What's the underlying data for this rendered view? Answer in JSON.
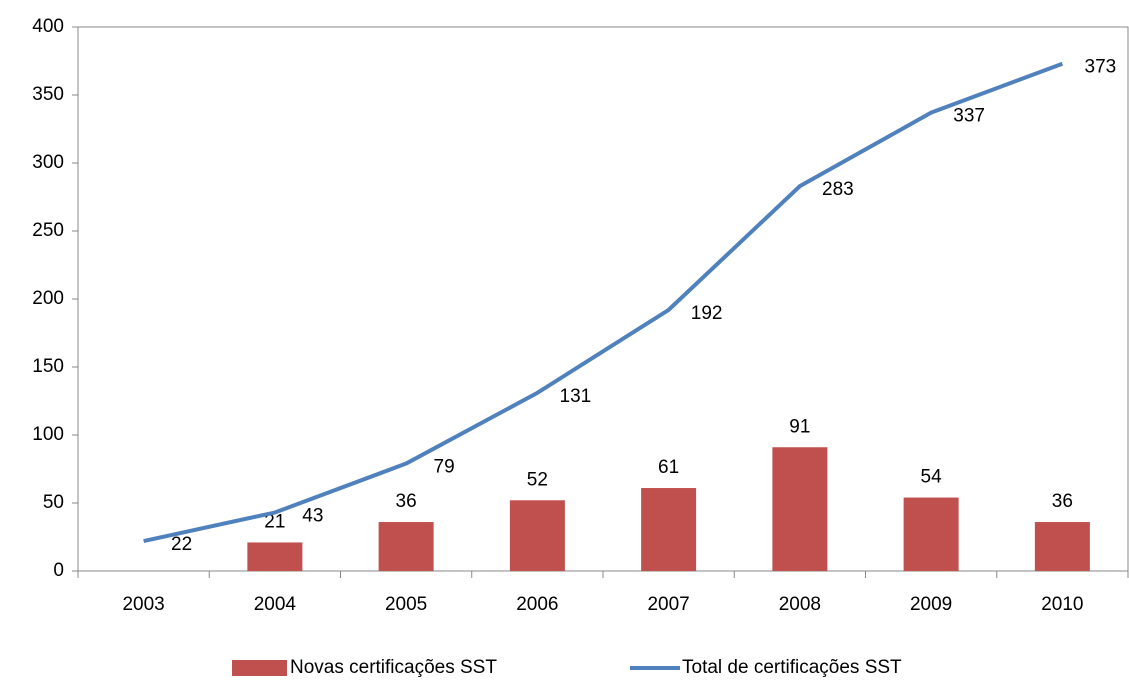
{
  "chart_data": {
    "type": "combo",
    "categories": [
      "2003",
      "2004",
      "2005",
      "2006",
      "2007",
      "2008",
      "2009",
      "2010"
    ],
    "series": [
      {
        "name": "Novas certificações SST",
        "type": "bar",
        "color": "#c0504d",
        "values": [
          null,
          21,
          36,
          52,
          61,
          91,
          54,
          36
        ]
      },
      {
        "name": "Total de certificações SST",
        "type": "line",
        "color": "#4f81bd",
        "values": [
          22,
          43,
          79,
          131,
          192,
          283,
          337,
          373
        ]
      }
    ],
    "ylim": [
      0,
      400
    ],
    "yticks": [
      0,
      50,
      100,
      150,
      200,
      250,
      300,
      350,
      400
    ],
    "grid": false,
    "legend": "bottom"
  }
}
